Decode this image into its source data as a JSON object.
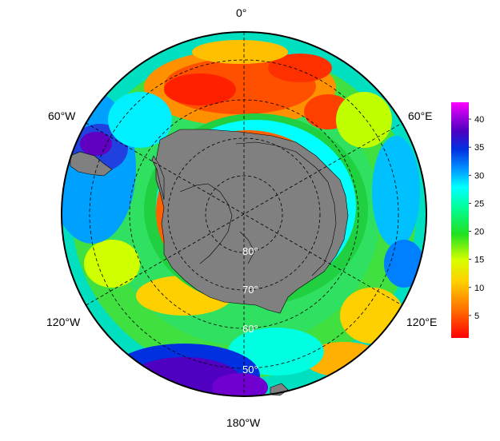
{
  "map": {
    "projection": "south-polar-stereographic",
    "longitude_labels": {
      "top": "0°",
      "upper_left": "60°W",
      "upper_right": "60°E",
      "lower_left": "120°W",
      "lower_right": "120°E",
      "bottom": "180°W"
    },
    "latitude_labels": [
      "80°",
      "70°",
      "60°",
      "50°"
    ],
    "land_color": "#808080",
    "graticule": "dashed"
  },
  "colorbar": {
    "ticks": [
      "5",
      "10",
      "15",
      "20",
      "25",
      "30",
      "35",
      "40"
    ],
    "min": 1,
    "max": 43,
    "colors": [
      "#ff0000",
      "#ff9000",
      "#ffff00",
      "#00e000",
      "#00ffff",
      "#0040ff",
      "#6000c0",
      "#ff00ff"
    ]
  }
}
